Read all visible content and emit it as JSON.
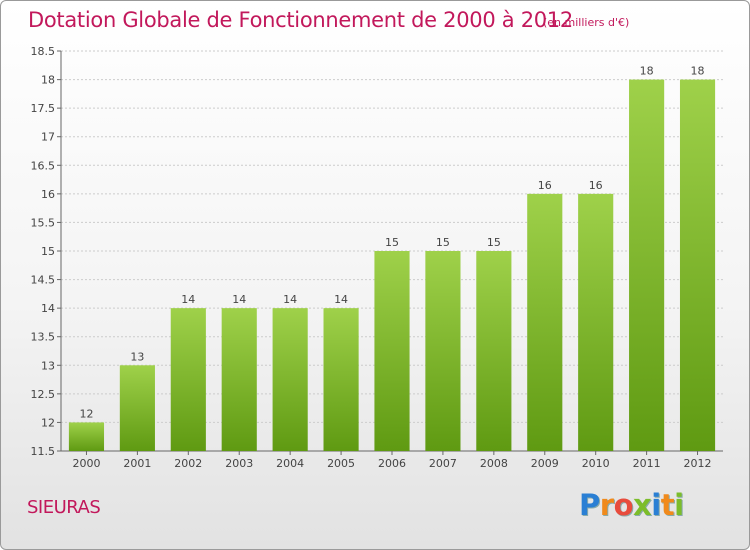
{
  "title": "Dotation Globale de Fonctionnement de 2000 à 2012",
  "subtitle": "(en milliers d'€)",
  "commune": "SIEURAS",
  "logo": {
    "text": "Proxiti",
    "letter_colors": [
      "#2a7fd4",
      "#f08a1c",
      "#e84c3d",
      "#7cbd2a",
      "#2a7fd4",
      "#f08a1c",
      "#7cbd2a"
    ]
  },
  "colors": {
    "bar_light": "#9fd14a",
    "bar_dark": "#5f9a12",
    "title": "#c2185b",
    "grid": "#cccccc"
  },
  "chart_data": {
    "type": "bar",
    "categories": [
      "2000",
      "2001",
      "2002",
      "2003",
      "2004",
      "2005",
      "2006",
      "2007",
      "2008",
      "2009",
      "2010",
      "2011",
      "2012"
    ],
    "values": [
      12,
      13,
      14,
      14,
      14,
      14,
      15,
      15,
      15,
      16,
      16,
      18,
      18
    ],
    "data_labels": [
      "12",
      "13",
      "14",
      "14",
      "14",
      "14",
      "15",
      "15",
      "15",
      "16",
      "16",
      "18",
      "18"
    ],
    "y_ticks": [
      "11.5",
      "12",
      "12.5",
      "13",
      "13.5",
      "14",
      "14.5",
      "15",
      "15.5",
      "16",
      "16.5",
      "17",
      "17.5",
      "18",
      "18.5"
    ],
    "ylim": [
      11.5,
      18.5
    ],
    "grid": true,
    "legend": "none"
  }
}
